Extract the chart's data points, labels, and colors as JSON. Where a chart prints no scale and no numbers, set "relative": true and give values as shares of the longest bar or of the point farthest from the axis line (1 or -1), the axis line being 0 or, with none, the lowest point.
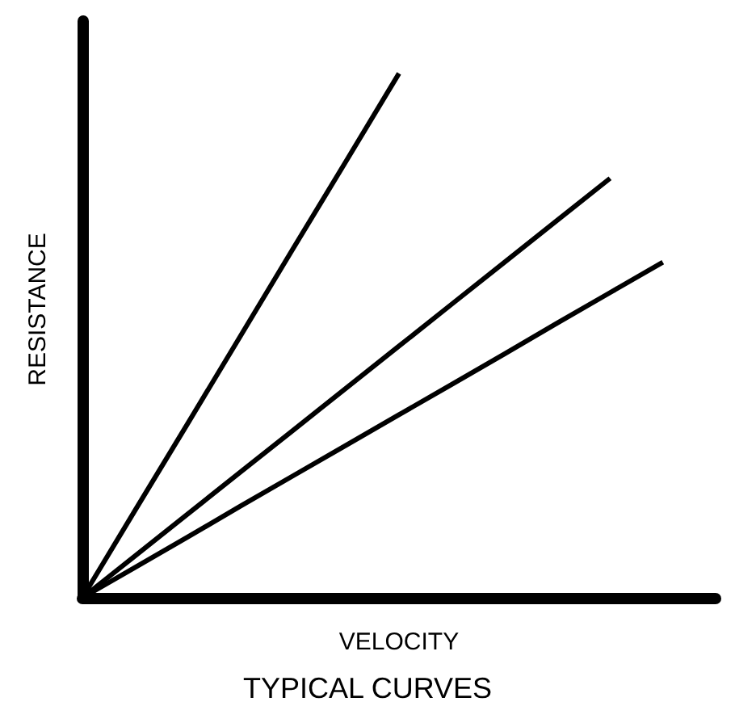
{
  "chart_data": {
    "type": "line",
    "title": "TYPICAL CURVES",
    "xlabel": "VELOCITY",
    "ylabel": "RESISTANCE",
    "relative": true,
    "marker": "none",
    "line_style": "solid",
    "grid": false,
    "categories": [
      null,
      null,
      null,
      null,
      null,
      null,
      null,
      null,
      null,
      null,
      null,
      null,
      null
    ],
    "series": [
      {
        "color": "#000000",
        "values": [
          0,
          0.167,
          0.333,
          0.5,
          0.667,
          0.833,
          1,
          null,
          null,
          null,
          null,
          null,
          null
        ]
      },
      {
        "color": "#000000",
        "values": [
          0,
          0.08,
          0.16,
          0.24,
          0.32,
          0.4,
          0.48,
          0.56,
          0.64,
          0.72,
          0.8,
          null,
          null
        ]
      },
      {
        "color": "#000000",
        "values": [
          0,
          0.058,
          0.116,
          0.175,
          0.233,
          0.291,
          0.349,
          0.407,
          0.465,
          0.524,
          0.582,
          0.64,
          null
        ]
      }
    ]
  }
}
